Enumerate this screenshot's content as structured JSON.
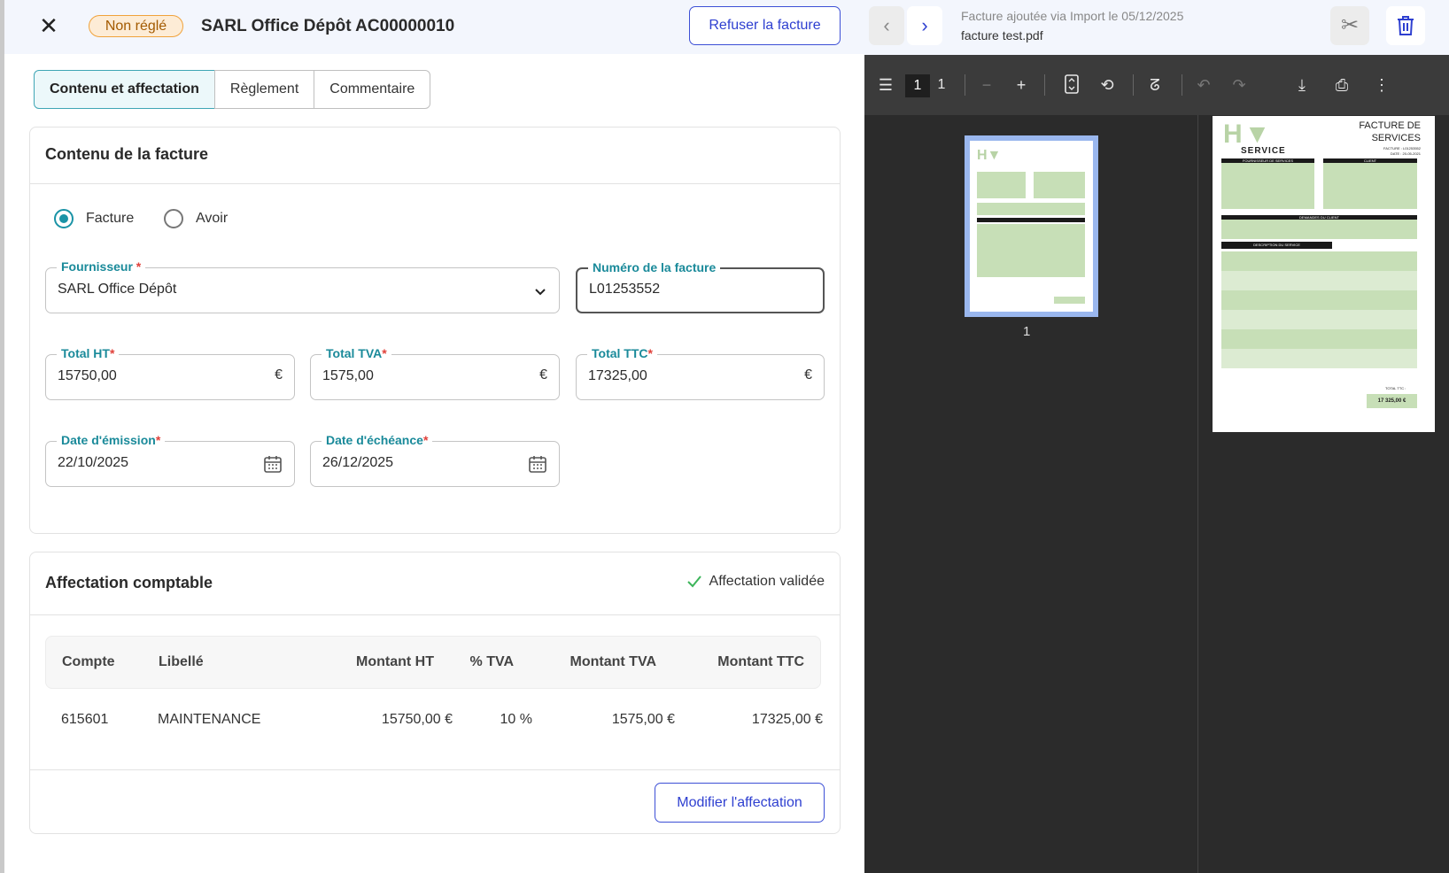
{
  "header": {
    "status_badge": "Non réglé",
    "title": "SARL Office Dépôt AC00000010",
    "refuse_label": "Refuser la facture"
  },
  "tabs": [
    {
      "label": "Contenu et affectation",
      "active": true
    },
    {
      "label": "Règlement"
    },
    {
      "label": "Commentaire"
    }
  ],
  "content": {
    "title": "Contenu de la facture",
    "type_options": [
      {
        "label": "Facture",
        "selected": true
      },
      {
        "label": "Avoir",
        "selected": false
      }
    ],
    "fournisseur": {
      "label": "Fournisseur",
      "value": "SARL Office Dépôt"
    },
    "numero": {
      "label": "Numéro de la facture",
      "value": "L01253552"
    },
    "total_ht": {
      "label": "Total HT",
      "value": "15750,00",
      "suffix": "€"
    },
    "total_tva": {
      "label": "Total TVA",
      "value": "1575,00",
      "suffix": "€"
    },
    "total_ttc": {
      "label": "Total TTC",
      "value": "17325,00",
      "suffix": "€"
    },
    "date_emission": {
      "label": "Date d'émission",
      "value": "22/10/2025"
    },
    "date_echeance": {
      "label": "Date d'échéance",
      "value": "26/12/2025"
    },
    "required_mark": "*"
  },
  "affectation": {
    "title": "Affectation comptable",
    "status": "Affectation validée",
    "columns": [
      "Compte",
      "Libellé",
      "Montant HT",
      "% TVA",
      "Montant TVA",
      "Montant TTC"
    ],
    "rows": [
      [
        "615601",
        "MAINTENANCE",
        "15750,00 €",
        "10 %",
        "1575,00 €",
        "17325,00 €"
      ]
    ],
    "modify_label": "Modifier l'affectation"
  },
  "document": {
    "meta": "Facture ajoutée via Import le 05/12/2025",
    "filename": "facture test.pdf",
    "page_current": "1",
    "page_sep": "/",
    "page_total": "1",
    "thumb_label": "1"
  },
  "pdf_page": {
    "logo": "HV SERVICE",
    "heading": "FACTURE DE SERVICES",
    "invoice_no": "FACTURE : L01253552",
    "date": "DATE : 20-05-2021",
    "provider_head": "FOURNISSEUR DE SERVICES",
    "client_head": "CLIENT",
    "requests_head": "DEMANDES DU CLIENT",
    "table_head": "DESCRIPTION DU SERVICE",
    "total_label": "TOTAL TTC :",
    "total": "17 325,00 €"
  },
  "colors": {
    "accent": "#2e3fd0",
    "teal": "#1a8a9a",
    "badge": "#f0a23b",
    "success": "#3cb55a",
    "required": "#e0413a"
  }
}
